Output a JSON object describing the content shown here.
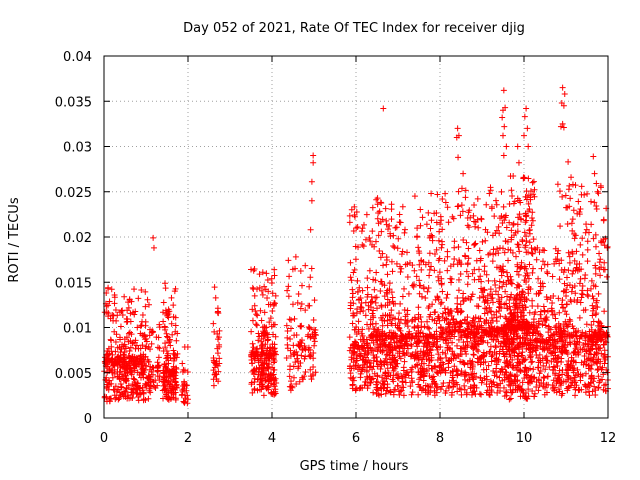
{
  "chart_data": {
    "type": "scatter",
    "title": "Day 052 of 2021, Rate Of TEC Index for receiver djig",
    "xlabel": "GPS time / hours",
    "ylabel": "ROTI / TECUs",
    "xlim": [
      0,
      12
    ],
    "ylim": [
      0,
      0.04
    ],
    "xticks": [
      0,
      2,
      4,
      6,
      8,
      10,
      12
    ],
    "xtick_labels": [
      "0",
      "2",
      "4",
      "6",
      "8",
      "10",
      "12"
    ],
    "yticks": [
      0,
      0.005,
      0.01,
      0.015,
      0.02,
      0.025,
      0.03,
      0.035,
      0.04
    ],
    "ytick_labels": [
      "0",
      "0.005",
      "0.01",
      "0.015",
      "0.02",
      "0.025",
      "0.03",
      "0.035",
      "0.04"
    ],
    "grid": true,
    "marker": "plus",
    "color": "#ff0000",
    "clusters": [
      {
        "x": [
          0.0,
          1.1
        ],
        "ymin": 0.0018,
        "ymax": 0.0145,
        "median": 0.0062,
        "density": 420
      },
      {
        "x": [
          1.1,
          1.35
        ],
        "ymin": 0.0025,
        "ymax": 0.0105,
        "median": 0.0055,
        "density": 40
      },
      {
        "x": [
          1.4,
          1.75
        ],
        "ymin": 0.002,
        "ymax": 0.015,
        "median": 0.005,
        "density": 160
      },
      {
        "x": [
          1.85,
          2.0
        ],
        "ymin": 0.0015,
        "ymax": 0.008,
        "median": 0.0035,
        "density": 30
      },
      {
        "x": [
          2.6,
          2.75
        ],
        "ymin": 0.0035,
        "ymax": 0.015,
        "median": 0.006,
        "density": 40
      },
      {
        "x": [
          3.5,
          4.1
        ],
        "ymin": 0.0025,
        "ymax": 0.0165,
        "median": 0.007,
        "density": 260
      },
      {
        "x": [
          4.35,
          4.8
        ],
        "ymin": 0.003,
        "ymax": 0.018,
        "median": 0.008,
        "density": 80
      },
      {
        "x": [
          4.85,
          5.05
        ],
        "ymin": 0.004,
        "ymax": 0.0175,
        "median": 0.009,
        "density": 40
      },
      {
        "x": [
          5.85,
          6.35
        ],
        "ymin": 0.003,
        "ymax": 0.0235,
        "median": 0.008,
        "density": 200
      },
      {
        "x": [
          6.35,
          8.0
        ],
        "ymin": 0.0025,
        "ymax": 0.025,
        "median": 0.009,
        "density": 700
      },
      {
        "x": [
          8.0,
          9.5
        ],
        "ymin": 0.0025,
        "ymax": 0.0255,
        "median": 0.0095,
        "density": 650
      },
      {
        "x": [
          9.5,
          10.25
        ],
        "ymin": 0.002,
        "ymax": 0.027,
        "median": 0.01,
        "density": 550
      },
      {
        "x": [
          10.25,
          10.8
        ],
        "ymin": 0.0025,
        "ymax": 0.019,
        "median": 0.0085,
        "density": 200
      },
      {
        "x": [
          10.8,
          12.0
        ],
        "ymin": 0.0025,
        "ymax": 0.026,
        "median": 0.009,
        "density": 520
      }
    ],
    "outliers": [
      {
        "x": 1.17,
        "y": 0.0199
      },
      {
        "x": 1.19,
        "y": 0.0188
      },
      {
        "x": 4.98,
        "y": 0.029
      },
      {
        "x": 4.98,
        "y": 0.0282
      },
      {
        "x": 4.95,
        "y": 0.0261
      },
      {
        "x": 4.95,
        "y": 0.024
      },
      {
        "x": 4.92,
        "y": 0.0208
      },
      {
        "x": 6.65,
        "y": 0.0342
      },
      {
        "x": 8.42,
        "y": 0.032
      },
      {
        "x": 8.45,
        "y": 0.0312
      },
      {
        "x": 8.4,
        "y": 0.031
      },
      {
        "x": 8.43,
        "y": 0.0288
      },
      {
        "x": 8.55,
        "y": 0.027
      },
      {
        "x": 9.52,
        "y": 0.0362
      },
      {
        "x": 9.55,
        "y": 0.0343
      },
      {
        "x": 9.5,
        "y": 0.034
      },
      {
        "x": 9.48,
        "y": 0.0332
      },
      {
        "x": 9.53,
        "y": 0.0322
      },
      {
        "x": 9.5,
        "y": 0.0312
      },
      {
        "x": 9.58,
        "y": 0.03
      },
      {
        "x": 9.52,
        "y": 0.029
      },
      {
        "x": 9.85,
        "y": 0.03
      },
      {
        "x": 9.88,
        "y": 0.0282
      },
      {
        "x": 10.05,
        "y": 0.0342
      },
      {
        "x": 10.02,
        "y": 0.0333
      },
      {
        "x": 10.08,
        "y": 0.032
      },
      {
        "x": 10.0,
        "y": 0.0312
      },
      {
        "x": 10.1,
        "y": 0.03
      },
      {
        "x": 10.92,
        "y": 0.0365
      },
      {
        "x": 10.97,
        "y": 0.0358
      },
      {
        "x": 10.9,
        "y": 0.0348
      },
      {
        "x": 10.95,
        "y": 0.0345
      },
      {
        "x": 10.92,
        "y": 0.0325
      },
      {
        "x": 10.88,
        "y": 0.0322
      },
      {
        "x": 10.95,
        "y": 0.0321
      },
      {
        "x": 11.05,
        "y": 0.0283
      },
      {
        "x": 11.12,
        "y": 0.0266
      },
      {
        "x": 11.65,
        "y": 0.0289
      },
      {
        "x": 11.68,
        "y": 0.027
      },
      {
        "x": 11.75,
        "y": 0.025
      }
    ]
  }
}
